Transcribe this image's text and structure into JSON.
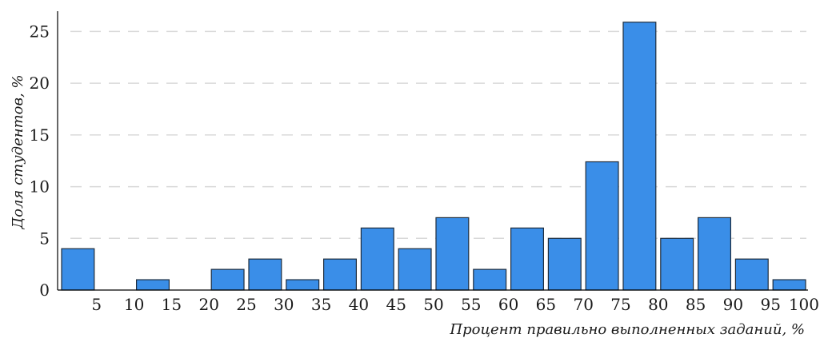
{
  "chart_data": {
    "type": "bar",
    "title": "",
    "xlabel": "Процент правильно выполненных заданий, %",
    "ylabel": "Доля студентов, %",
    "ylim": [
      0,
      26.5
    ],
    "xlim": [
      0,
      100
    ],
    "grid": true,
    "yticks": [
      0,
      5,
      10,
      15,
      20,
      25
    ],
    "xticks": [
      5,
      10,
      15,
      20,
      25,
      30,
      35,
      40,
      45,
      50,
      55,
      60,
      65,
      70,
      75,
      80,
      85,
      90,
      95,
      100
    ],
    "bins": [
      {
        "from": 0,
        "to": 5,
        "value": 4
      },
      {
        "from": 5,
        "to": 10,
        "value": 0
      },
      {
        "from": 10,
        "to": 15,
        "value": 1
      },
      {
        "from": 15,
        "to": 20,
        "value": 0
      },
      {
        "from": 20,
        "to": 25,
        "value": 2
      },
      {
        "from": 25,
        "to": 30,
        "value": 3
      },
      {
        "from": 30,
        "to": 35,
        "value": 1
      },
      {
        "from": 35,
        "to": 40,
        "value": 3
      },
      {
        "from": 40,
        "to": 45,
        "value": 6
      },
      {
        "from": 45,
        "to": 50,
        "value": 4
      },
      {
        "from": 50,
        "to": 55,
        "value": 7
      },
      {
        "from": 55,
        "to": 60,
        "value": 2
      },
      {
        "from": 60,
        "to": 65,
        "value": 6
      },
      {
        "from": 65,
        "to": 70,
        "value": 5
      },
      {
        "from": 70,
        "to": 75,
        "value": 12.4
      },
      {
        "from": 75,
        "to": 80,
        "value": 25.9
      },
      {
        "from": 80,
        "to": 85,
        "value": 5
      },
      {
        "from": 85,
        "to": 90,
        "value": 7
      },
      {
        "from": 90,
        "to": 95,
        "value": 3
      },
      {
        "from": 95,
        "to": 100,
        "value": 1
      }
    ],
    "colors": {
      "bar": "#3a8ee8"
    }
  }
}
